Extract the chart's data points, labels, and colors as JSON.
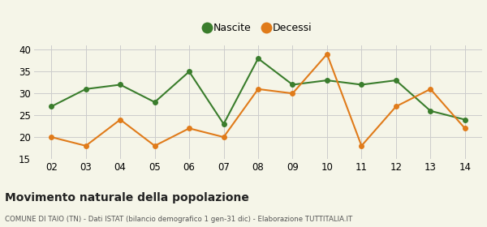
{
  "years": [
    "02",
    "03",
    "04",
    "05",
    "06",
    "07",
    "08",
    "09",
    "10",
    "11",
    "12",
    "13",
    "14"
  ],
  "nascite": [
    27,
    31,
    32,
    28,
    35,
    23,
    38,
    32,
    33,
    32,
    33,
    26,
    24
  ],
  "decessi": [
    20,
    18,
    24,
    18,
    22,
    20,
    31,
    30,
    39,
    18,
    27,
    31,
    22
  ],
  "nascite_color": "#3a7d2c",
  "decessi_color": "#e07b1a",
  "ylim": [
    15,
    41
  ],
  "yticks": [
    15,
    20,
    25,
    30,
    35,
    40
  ],
  "title": "Movimento naturale della popolazione",
  "subtitle": "COMUNE DI TAIO (TN) - Dati ISTAT (bilancio demografico 1 gen-31 dic) - Elaborazione TUTTITALIA.IT",
  "legend_nascite": "Nascite",
  "legend_decessi": "Decessi",
  "background_color": "#f5f5e8",
  "grid_color": "#cccccc"
}
